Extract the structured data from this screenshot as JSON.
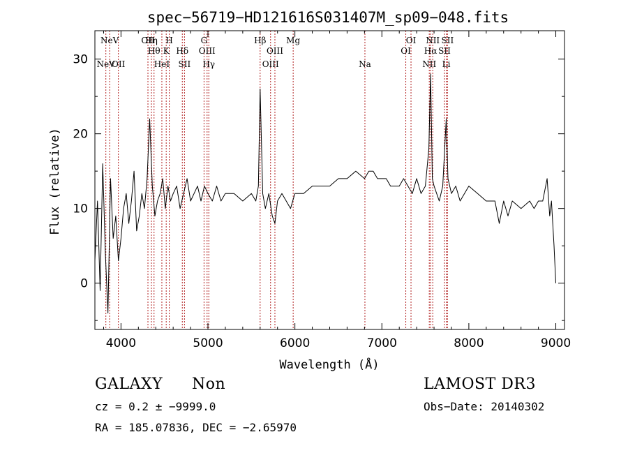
{
  "chart_data": {
    "type": "line",
    "title": "spec−56719−HD121616S031407M_sp09−048.fits",
    "xlabel": "Wavelength (Å)",
    "ylabel": "Flux (relative)",
    "xlim": [
      3700,
      9100
    ],
    "ylim": [
      -6.2,
      33.8
    ],
    "xticks": [
      4000,
      5000,
      6000,
      7000,
      8000,
      9000
    ],
    "yticks": [
      0,
      10,
      20,
      30
    ],
    "series": [
      {
        "name": "spectrum",
        "x": [
          3700,
          3730,
          3760,
          3790,
          3820,
          3850,
          3880,
          3910,
          3940,
          3970,
          4000,
          4030,
          4060,
          4090,
          4120,
          4150,
          4180,
          4210,
          4240,
          4270,
          4300,
          4330,
          4360,
          4390,
          4420,
          4450,
          4480,
          4510,
          4540,
          4570,
          4600,
          4640,
          4680,
          4720,
          4760,
          4800,
          4840,
          4880,
          4920,
          4960,
          5000,
          5050,
          5100,
          5150,
          5200,
          5300,
          5400,
          5500,
          5550,
          5580,
          5600,
          5630,
          5660,
          5700,
          5740,
          5770,
          5800,
          5850,
          5900,
          5950,
          6000,
          6100,
          6200,
          6300,
          6400,
          6500,
          6600,
          6700,
          6800,
          6850,
          6900,
          6950,
          7000,
          7050,
          7100,
          7150,
          7200,
          7250,
          7300,
          7350,
          7400,
          7450,
          7500,
          7540,
          7560,
          7580,
          7600,
          7630,
          7660,
          7700,
          7740,
          7760,
          7800,
          7850,
          7900,
          8000,
          8100,
          8200,
          8300,
          8350,
          8400,
          8450,
          8500,
          8600,
          8700,
          8750,
          8800,
          8850,
          8900,
          8930,
          8950,
          8980,
          9000
        ],
        "y": [
          3,
          11,
          -1,
          16,
          4,
          -4,
          14,
          6,
          9,
          3,
          6,
          10,
          12,
          8,
          11,
          15,
          7,
          9,
          12,
          10,
          14,
          22,
          13,
          9,
          11,
          12,
          14,
          10,
          13,
          11,
          12,
          13,
          10,
          12,
          14,
          11,
          12,
          13,
          11,
          13,
          12,
          11,
          13,
          11,
          12,
          12,
          11,
          12,
          11,
          13,
          26,
          12,
          10,
          12,
          9,
          8,
          11,
          12,
          11,
          10,
          12,
          12,
          13,
          13,
          13,
          14,
          14,
          15,
          14,
          15,
          15,
          14,
          14,
          14,
          13,
          13,
          13,
          14,
          13,
          12,
          14,
          12,
          13,
          18,
          28,
          14,
          13,
          12,
          11,
          13,
          22,
          14,
          12,
          13,
          11,
          13,
          12,
          11,
          11,
          8,
          11,
          9,
          11,
          10,
          11,
          10,
          11,
          11,
          14,
          9,
          11,
          5,
          0
        ]
      }
    ],
    "lines": [
      {
        "name": "NeV",
        "x": 3826,
        "label_row": 2
      },
      {
        "name": "NeV",
        "x": 3870,
        "label_row": 0
      },
      {
        "name": "OII",
        "x": 3970,
        "label_row": 2
      },
      {
        "name": "OII",
        "x": 4310,
        "label_row": 0
      },
      {
        "name": "Hη",
        "x": 4350,
        "label_row": 0
      },
      {
        "name": "Hθ",
        "x": 4380,
        "label_row": 1
      },
      {
        "name": "HeI",
        "x": 4470,
        "label_row": 2
      },
      {
        "name": "K",
        "x": 4520,
        "label_row": 1
      },
      {
        "name": "H",
        "x": 4555,
        "label_row": 0
      },
      {
        "name": "Hδ",
        "x": 4705,
        "label_row": 1
      },
      {
        "name": "SII",
        "x": 4730,
        "label_row": 2
      },
      {
        "name": "G",
        "x": 4955,
        "label_row": 0
      },
      {
        "name": "OIII",
        "x": 4990,
        "label_row": 1
      },
      {
        "name": "Hγ",
        "x": 5010,
        "label_row": 2
      },
      {
        "name": "Hβ",
        "x": 5600,
        "label_row": 0
      },
      {
        "name": "OIII",
        "x": 5720,
        "label_row": 2
      },
      {
        "name": "OIII",
        "x": 5770,
        "label_row": 1
      },
      {
        "name": "Mg",
        "x": 5980,
        "label_row": 0
      },
      {
        "name": "Na",
        "x": 6805,
        "label_row": 2
      },
      {
        "name": "OI",
        "x": 7275,
        "label_row": 1
      },
      {
        "name": "OI",
        "x": 7335,
        "label_row": 0
      },
      {
        "name": "NII",
        "x": 7545,
        "label_row": 2
      },
      {
        "name": "Hα",
        "x": 7560,
        "label_row": 1
      },
      {
        "name": "NII",
        "x": 7585,
        "label_row": 0
      },
      {
        "name": "SII",
        "x": 7720,
        "label_row": 1
      },
      {
        "name": "Li",
        "x": 7740,
        "label_row": 2
      },
      {
        "name": "SII",
        "x": 7755,
        "label_row": 0
      }
    ]
  },
  "info": {
    "object_class": "GALAXY",
    "subclass": "Non",
    "survey": "LAMOST DR3",
    "redshift": "cz = 0.2 ± −9999.0",
    "obs_date": "Obs−Date: 20140302",
    "coords": "RA = 185.07836, DEC =  −2.65970"
  },
  "colors": {
    "spectrum": "#000000",
    "line_markers": "#b22222",
    "axes": "#000000",
    "background": "#ffffff"
  }
}
